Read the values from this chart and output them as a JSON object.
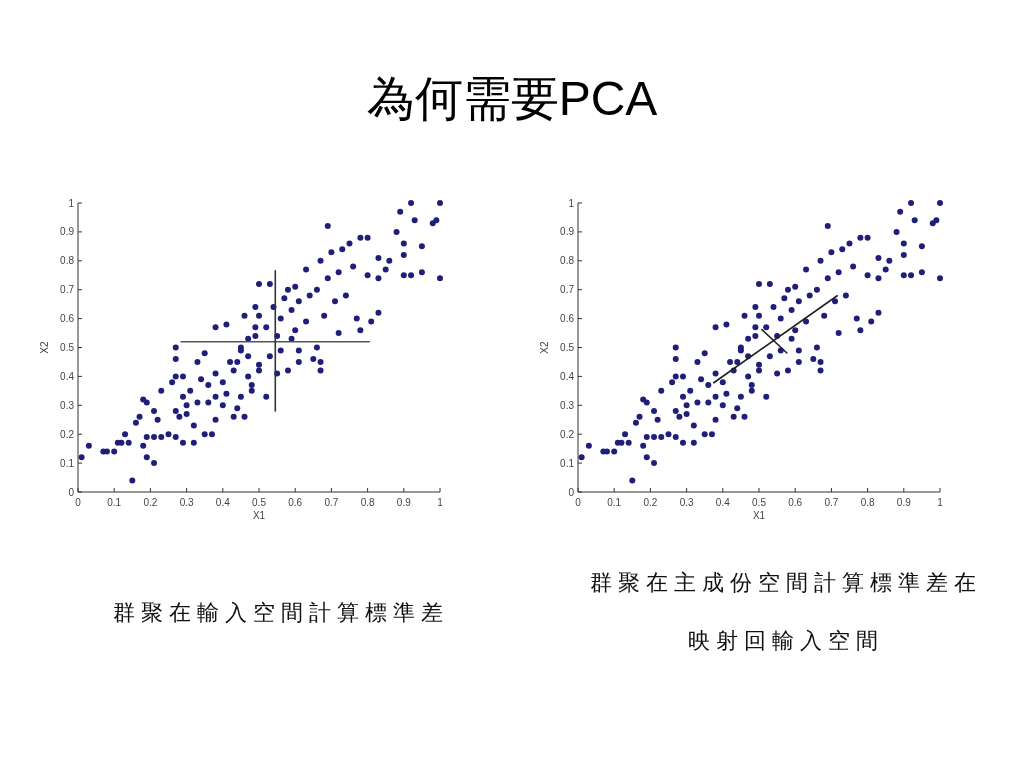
{
  "chart_data": [
    {
      "type": "scatter",
      "title": "為何需要PCA",
      "xlabel": "X1",
      "ylabel": "X2",
      "xlim": [
        0,
        1
      ],
      "ylim": [
        0,
        1
      ],
      "xticks": [
        0,
        0.1,
        0.2,
        0.3,
        0.4,
        0.5,
        0.6,
        0.7,
        0.8,
        0.9,
        1
      ],
      "yticks": [
        0,
        0.1,
        0.2,
        0.3,
        0.4,
        0.5,
        0.6,
        0.7,
        0.8,
        0.9,
        1
      ],
      "series": [
        {
          "type": "scatter",
          "marker": "circle",
          "color": "#1f1f7a",
          "x": [
            0.03,
            0.07,
            0.08,
            0.1,
            0.11,
            0.12,
            0.14,
            0.13,
            0.01,
            0.15,
            0.21,
            0.19,
            0.18,
            0.19,
            0.16,
            0.17,
            0.18,
            0.19,
            0.21,
            0.23,
            0.22,
            0.21,
            0.23,
            0.25,
            0.27,
            0.27,
            0.26,
            0.27,
            0.27,
            0.27,
            0.28,
            0.3,
            0.29,
            0.32,
            0.32,
            0.35,
            0.37,
            0.38,
            0.41,
            0.43,
            0.44,
            0.46,
            0.38,
            0.35,
            0.49,
            0.31,
            0.34,
            0.36,
            0.38,
            0.4,
            0.42,
            0.43,
            0.45,
            0.47,
            0.49,
            0.46,
            0.48,
            0.45,
            0.41,
            0.38,
            0.33,
            0.3,
            0.29,
            0.33,
            0.29,
            0.36,
            0.4,
            0.44,
            0.5,
            0.47,
            0.45,
            0.47,
            0.49,
            0.52,
            0.55,
            0.56,
            0.59,
            0.61,
            0.64,
            0.66,
            0.69,
            0.72,
            0.76,
            0.8,
            0.83,
            0.85,
            0.63,
            0.68,
            0.71,
            0.74,
            0.59,
            0.61,
            0.53,
            0.5,
            0.56,
            0.6,
            0.66,
            0.54,
            0.58,
            0.5,
            0.92,
            1.0,
            0.69,
            0.89,
            0.93,
            0.98,
            0.99,
            0.88,
            0.9,
            0.9,
            0.95,
            1.0,
            0.95,
            0.92,
            0.9,
            0.86,
            0.83,
            0.8,
            0.78,
            0.75,
            0.73,
            0.7,
            0.67,
            0.63,
            0.6,
            0.57,
            0.53,
            0.5,
            0.83,
            0.81,
            0.78,
            0.77,
            0.72,
            0.67,
            0.67,
            0.65,
            0.61,
            0.58,
            0.55,
            0.52,
            0.48
          ],
          "values": [
            0.16,
            0.14,
            0.14,
            0.14,
            0.17,
            0.17,
            0.17,
            0.2,
            0.12,
            0.04,
            0.1,
            0.12,
            0.16,
            0.19,
            0.24,
            0.26,
            0.32,
            0.31,
            0.28,
            0.35,
            0.25,
            0.19,
            0.19,
            0.2,
            0.19,
            0.28,
            0.38,
            0.4,
            0.5,
            0.46,
            0.26,
            0.27,
            0.17,
            0.17,
            0.23,
            0.2,
            0.2,
            0.57,
            0.58,
            0.26,
            0.29,
            0.26,
            0.25,
            0.48,
            0.64,
            0.35,
            0.39,
            0.37,
            0.41,
            0.38,
            0.45,
            0.42,
            0.49,
            0.53,
            0.57,
            0.61,
            0.35,
            0.33,
            0.34,
            0.33,
            0.31,
            0.3,
            0.33,
            0.45,
            0.4,
            0.31,
            0.3,
            0.45,
            0.42,
            0.4,
            0.5,
            0.47,
            0.54,
            0.57,
            0.54,
            0.6,
            0.63,
            0.66,
            0.68,
            0.7,
            0.74,
            0.76,
            0.78,
            0.75,
            0.74,
            0.77,
            0.59,
            0.61,
            0.66,
            0.68,
            0.53,
            0.49,
            0.47,
            0.44,
            0.49,
            0.56,
            0.5,
            0.64,
            0.7,
            0.61,
            1.0,
            1.0,
            0.92,
            0.97,
            0.94,
            0.93,
            0.94,
            0.9,
            0.86,
            0.82,
            0.85,
            0.74,
            0.76,
            0.75,
            0.75,
            0.8,
            0.81,
            0.88,
            0.88,
            0.86,
            0.84,
            0.83,
            0.8,
            0.77,
            0.71,
            0.67,
            0.72,
            0.72,
            0.62,
            0.59,
            0.56,
            0.6,
            0.55,
            0.42,
            0.45,
            0.46,
            0.45,
            0.42,
            0.41,
            0.33,
            0.37
          ]
        },
        {
          "type": "line",
          "color": "#555555",
          "x": [
            0.285,
            0.805
          ],
          "values": [
            0.52,
            0.52
          ]
        },
        {
          "type": "line",
          "color": "#333333",
          "x": [
            0.545,
            0.545
          ],
          "values": [
            0.28,
            0.765
          ]
        }
      ],
      "annotations": [
        "群聚在輸入空間計算標準差"
      ]
    },
    {
      "type": "scatter",
      "xlabel": "X1",
      "ylabel": "X2",
      "xlim": [
        0,
        1
      ],
      "ylim": [
        0,
        1
      ],
      "xticks": [
        0,
        0.1,
        0.2,
        0.3,
        0.4,
        0.5,
        0.6,
        0.7,
        0.8,
        0.9,
        1
      ],
      "yticks": [
        0,
        0.1,
        0.2,
        0.3,
        0.4,
        0.5,
        0.6,
        0.7,
        0.8,
        0.9,
        1
      ],
      "series": [
        {
          "type": "scatter",
          "marker": "circle",
          "color": "#1f1f7a",
          "x": [
            0.03,
            0.07,
            0.08,
            0.1,
            0.11,
            0.12,
            0.14,
            0.13,
            0.01,
            0.15,
            0.21,
            0.19,
            0.18,
            0.19,
            0.16,
            0.17,
            0.18,
            0.19,
            0.21,
            0.23,
            0.22,
            0.21,
            0.23,
            0.25,
            0.27,
            0.27,
            0.26,
            0.27,
            0.27,
            0.27,
            0.28,
            0.3,
            0.29,
            0.32,
            0.32,
            0.35,
            0.37,
            0.38,
            0.41,
            0.43,
            0.44,
            0.46,
            0.38,
            0.35,
            0.49,
            0.31,
            0.34,
            0.36,
            0.38,
            0.4,
            0.42,
            0.43,
            0.45,
            0.47,
            0.49,
            0.46,
            0.48,
            0.45,
            0.41,
            0.38,
            0.33,
            0.3,
            0.29,
            0.33,
            0.29,
            0.36,
            0.4,
            0.44,
            0.5,
            0.47,
            0.45,
            0.47,
            0.49,
            0.52,
            0.55,
            0.56,
            0.59,
            0.61,
            0.64,
            0.66,
            0.69,
            0.72,
            0.76,
            0.8,
            0.83,
            0.85,
            0.63,
            0.68,
            0.71,
            0.74,
            0.59,
            0.61,
            0.53,
            0.5,
            0.56,
            0.6,
            0.66,
            0.54,
            0.58,
            0.5,
            0.92,
            1.0,
            0.69,
            0.89,
            0.93,
            0.98,
            0.99,
            0.88,
            0.9,
            0.9,
            0.95,
            1.0,
            0.95,
            0.92,
            0.9,
            0.86,
            0.83,
            0.8,
            0.78,
            0.75,
            0.73,
            0.7,
            0.67,
            0.63,
            0.6,
            0.57,
            0.53,
            0.5,
            0.83,
            0.81,
            0.78,
            0.77,
            0.72,
            0.67,
            0.67,
            0.65,
            0.61,
            0.58,
            0.55,
            0.52,
            0.48
          ],
          "values": [
            0.16,
            0.14,
            0.14,
            0.14,
            0.17,
            0.17,
            0.17,
            0.2,
            0.12,
            0.04,
            0.1,
            0.12,
            0.16,
            0.19,
            0.24,
            0.26,
            0.32,
            0.31,
            0.28,
            0.35,
            0.25,
            0.19,
            0.19,
            0.2,
            0.19,
            0.28,
            0.38,
            0.4,
            0.5,
            0.46,
            0.26,
            0.27,
            0.17,
            0.17,
            0.23,
            0.2,
            0.2,
            0.57,
            0.58,
            0.26,
            0.29,
            0.26,
            0.25,
            0.48,
            0.64,
            0.35,
            0.39,
            0.37,
            0.41,
            0.38,
            0.45,
            0.42,
            0.49,
            0.53,
            0.57,
            0.61,
            0.35,
            0.33,
            0.34,
            0.33,
            0.31,
            0.3,
            0.33,
            0.45,
            0.4,
            0.31,
            0.3,
            0.45,
            0.42,
            0.4,
            0.5,
            0.47,
            0.54,
            0.57,
            0.54,
            0.6,
            0.63,
            0.66,
            0.68,
            0.7,
            0.74,
            0.76,
            0.78,
            0.75,
            0.74,
            0.77,
            0.59,
            0.61,
            0.66,
            0.68,
            0.53,
            0.49,
            0.47,
            0.44,
            0.49,
            0.56,
            0.5,
            0.64,
            0.7,
            0.61,
            1.0,
            1.0,
            0.92,
            0.97,
            0.94,
            0.93,
            0.94,
            0.9,
            0.86,
            0.82,
            0.85,
            0.74,
            0.76,
            0.75,
            0.75,
            0.8,
            0.81,
            0.88,
            0.88,
            0.86,
            0.84,
            0.83,
            0.8,
            0.77,
            0.71,
            0.67,
            0.72,
            0.72,
            0.62,
            0.59,
            0.56,
            0.6,
            0.55,
            0.42,
            0.45,
            0.46,
            0.45,
            0.42,
            0.41,
            0.33,
            0.37
          ]
        },
        {
          "type": "line",
          "color": "#222222",
          "x": [
            0.375,
            0.716
          ],
          "values": [
            0.378,
            0.679
          ]
        },
        {
          "type": "line",
          "color": "#222222",
          "x": [
            0.508,
            0.577
          ],
          "values": [
            0.562,
            0.481
          ]
        }
      ],
      "annotations": [
        "群聚在主成份空間計算標準差在映射回輸入空間"
      ]
    }
  ]
}
